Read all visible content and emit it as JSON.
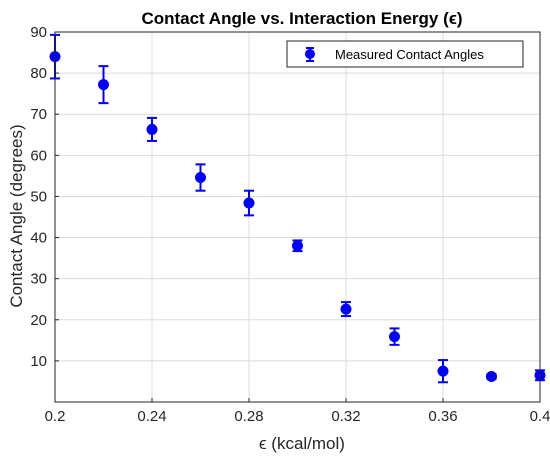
{
  "chart_data": {
    "type": "scatter",
    "title": "Contact Angle vs. Interaction Energy (ϵ)",
    "xlabel": "ϵ (kcal/mol)",
    "ylabel": "Contact Angle (degrees)",
    "xlim": [
      0.2,
      0.4
    ],
    "ylim": [
      0,
      90
    ],
    "xticks": [
      "0.2",
      "0.24",
      "0.28",
      "0.32",
      "0.36",
      "0.4"
    ],
    "yticks": [
      "10",
      "20",
      "30",
      "40",
      "50",
      "60",
      "70",
      "80",
      "90"
    ],
    "grid": true,
    "legend_position": "top-right",
    "series": [
      {
        "name": "Measured Contact Angles",
        "color": "#0000ff",
        "marker": "circle",
        "error_bars": true,
        "points": [
          {
            "x": 0.2,
            "y": 84.0,
            "err": 5.3
          },
          {
            "x": 0.22,
            "y": 77.2,
            "err": 4.5
          },
          {
            "x": 0.24,
            "y": 66.3,
            "err": 2.8
          },
          {
            "x": 0.26,
            "y": 54.6,
            "err": 3.2
          },
          {
            "x": 0.28,
            "y": 48.4,
            "err": 3.0
          },
          {
            "x": 0.3,
            "y": 38.0,
            "err": 1.3
          },
          {
            "x": 0.32,
            "y": 22.6,
            "err": 1.7
          },
          {
            "x": 0.34,
            "y": 15.9,
            "err": 2.0
          },
          {
            "x": 0.36,
            "y": 7.5,
            "err": 2.7
          },
          {
            "x": 0.38,
            "y": 6.2,
            "err": 0.6
          },
          {
            "x": 0.4,
            "y": 6.5,
            "err": 1.2
          }
        ]
      }
    ]
  }
}
